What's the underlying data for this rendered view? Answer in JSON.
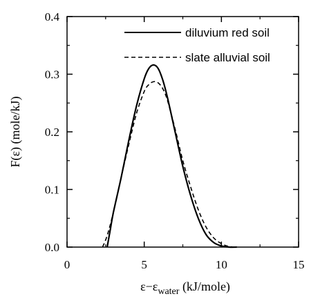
{
  "chart_data": {
    "type": "line",
    "xlabel_main": "ε−ε",
    "xlabel_sub": "water",
    "xlabel_unit": " (kJ/mole)",
    "ylabel": "F(ε) (mole/kJ)",
    "xlim": [
      0,
      15
    ],
    "ylim": [
      0,
      0.4
    ],
    "x_ticks": [
      "0",
      "5",
      "10",
      "15"
    ],
    "y_ticks": [
      "0.0",
      "0.1",
      "0.2",
      "0.3",
      "0.4"
    ],
    "grid": false,
    "legend_position": "top-right",
    "series": [
      {
        "name": "diluvium red soil",
        "style": "solid",
        "x": [
          2.6,
          2.8,
          3.0,
          3.5,
          4.0,
          4.5,
          5.0,
          5.3,
          5.6,
          5.9,
          6.2,
          6.5,
          7.0,
          7.5,
          8.0,
          8.5,
          9.0,
          9.5,
          10.0,
          10.5,
          11.0
        ],
        "y": [
          0.0,
          0.03,
          0.06,
          0.12,
          0.185,
          0.245,
          0.292,
          0.31,
          0.316,
          0.31,
          0.29,
          0.26,
          0.2,
          0.14,
          0.09,
          0.05,
          0.022,
          0.008,
          0.002,
          0.0,
          0.0
        ]
      },
      {
        "name": "slate alluvial soil",
        "style": "dashed",
        "x": [
          2.3,
          2.6,
          3.0,
          3.5,
          4.0,
          4.5,
          5.0,
          5.3,
          5.6,
          5.9,
          6.2,
          6.5,
          7.0,
          7.5,
          8.0,
          8.5,
          9.0,
          9.5,
          10.0,
          10.5,
          11.0
        ],
        "y": [
          0.0,
          0.02,
          0.06,
          0.12,
          0.178,
          0.232,
          0.27,
          0.282,
          0.287,
          0.285,
          0.275,
          0.255,
          0.205,
          0.15,
          0.105,
          0.065,
          0.035,
          0.016,
          0.006,
          0.001,
          0.0
        ]
      }
    ]
  }
}
